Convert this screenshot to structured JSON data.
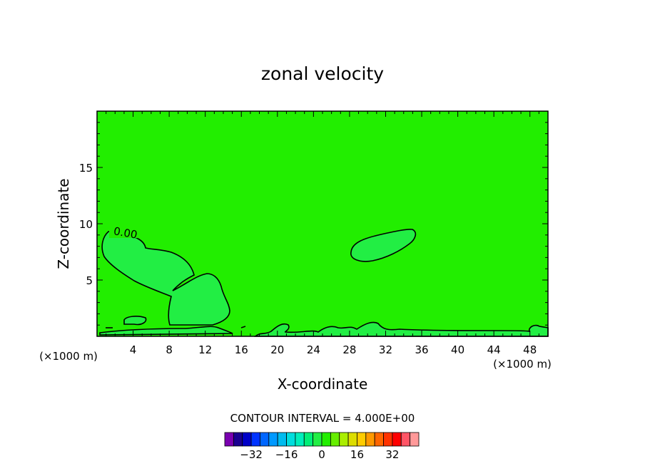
{
  "chart_data": {
    "type": "contour",
    "title": "zonal velocity",
    "xlabel": "X-coordinate",
    "ylabel": "Z-coordinate",
    "xlim": [
      0,
      50
    ],
    "ylim": [
      0,
      20
    ],
    "x_ticks": [
      4,
      8,
      12,
      16,
      20,
      24,
      28,
      32,
      36,
      40,
      44,
      48
    ],
    "y_ticks": [
      5,
      10,
      15
    ],
    "x_unit": "(×1000 m)",
    "y_unit": "(×1000 m)",
    "contour_label": "0.00",
    "contour_interval_text": "CONTOUR INTERVAL = 4.000E+00",
    "background_color": "#22ee00",
    "positive_region_color": "#22ee44",
    "colorbar": {
      "colors": [
        "#7a00b0",
        "#1a0090",
        "#0000c8",
        "#0033ff",
        "#0066ff",
        "#0099ff",
        "#00bbee",
        "#00dddd",
        "#00eebb",
        "#00ee77",
        "#22ee44",
        "#22ee00",
        "#66ee00",
        "#aaee00",
        "#dddd00",
        "#ffcc00",
        "#ff9900",
        "#ff6600",
        "#ff3300",
        "#ff0000",
        "#ff5566",
        "#ff9999"
      ],
      "tick_labels": [
        "-32",
        "-16",
        "0",
        "16",
        "32"
      ],
      "tick_values": [
        -32,
        -16,
        0,
        16,
        32
      ],
      "range": [
        -44,
        44
      ]
    }
  }
}
